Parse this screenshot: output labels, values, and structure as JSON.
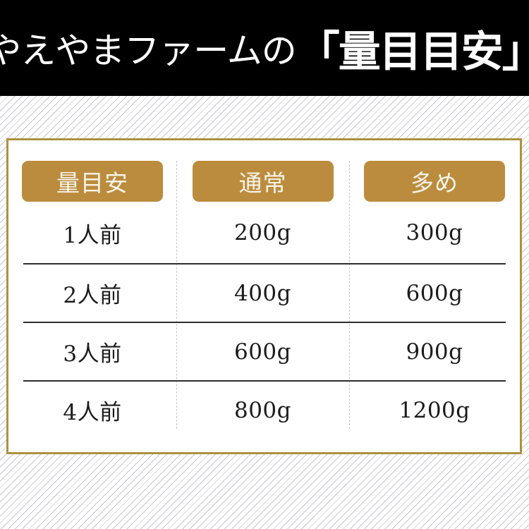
{
  "header": {
    "title_prefix": "やえやまファームの",
    "title_emphasis": "「量目目安」"
  },
  "table": {
    "columns": [
      "量目安",
      "通常",
      "多め"
    ],
    "rows": [
      {
        "cells": [
          "1人前",
          "200g",
          "300g"
        ]
      },
      {
        "cells": [
          "2人前",
          "400g",
          "600g"
        ]
      },
      {
        "cells": [
          "3人前",
          "600g",
          "900g"
        ]
      },
      {
        "cells": [
          "4人前",
          "800g",
          "1200g"
        ]
      }
    ]
  },
  "colors": {
    "accent_gold": "#bc8c3e",
    "panel_border": "#ae9140",
    "header_bg": "#000000",
    "stripe": "#c8c8cd",
    "pill_text": "#f8f4e9",
    "table_text": "#1b1b1b"
  }
}
